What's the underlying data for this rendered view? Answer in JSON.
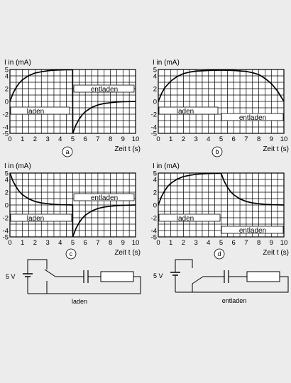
{
  "graphs": [
    {
      "id": "a",
      "ylabel": "I in (mA)",
      "xlabel": "Zeit t (s)",
      "yticks": [
        "5",
        "4",
        "2",
        "0",
        "-2",
        "-4",
        "-5"
      ],
      "xticks": [
        "0",
        "1",
        "2",
        "3",
        "4",
        "5",
        "6",
        "7",
        "8",
        "9",
        "10"
      ],
      "label_charge": "laden",
      "label_discharge": "entladen",
      "curve": [
        [
          0,
          0
        ],
        [
          0.25,
          1.3
        ],
        [
          0.5,
          2.2
        ],
        [
          0.75,
          2.9
        ],
        [
          1,
          3.4
        ],
        [
          1.5,
          4.05
        ],
        [
          2,
          4.45
        ],
        [
          2.5,
          4.65
        ],
        [
          3,
          4.8
        ],
        [
          3.5,
          4.88
        ],
        [
          4,
          4.93
        ],
        [
          4.5,
          4.95
        ],
        [
          4.99,
          4.96
        ],
        [
          5,
          -5
        ],
        [
          5.25,
          -3.7
        ],
        [
          5.5,
          -2.8
        ],
        [
          5.75,
          -2.1
        ],
        [
          6,
          -1.6
        ],
        [
          6.5,
          -0.95
        ],
        [
          7,
          -0.55
        ],
        [
          7.5,
          -0.32
        ],
        [
          8,
          -0.2
        ],
        [
          8.5,
          -0.1
        ],
        [
          9,
          -0.05
        ],
        [
          10,
          0
        ]
      ]
    },
    {
      "id": "b",
      "ylabel": "I in (mA)",
      "xlabel": "Zeit t (s)",
      "yticks": [
        "5",
        "4",
        "2",
        "0",
        "-2",
        "-4",
        "-5"
      ],
      "xticks": [
        "0",
        "1",
        "2",
        "3",
        "4",
        "5",
        "6",
        "7",
        "8",
        "9",
        "10"
      ],
      "label_charge": "laden",
      "label_discharge": "entladen",
      "curve": [
        [
          0,
          0
        ],
        [
          0.25,
          1.2
        ],
        [
          0.5,
          2.1
        ],
        [
          1,
          3.2
        ],
        [
          1.5,
          3.9
        ],
        [
          2,
          4.35
        ],
        [
          2.5,
          4.6
        ],
        [
          3,
          4.75
        ],
        [
          4,
          4.85
        ],
        [
          5,
          4.9
        ],
        [
          6,
          4.85
        ],
        [
          7,
          4.7
        ],
        [
          7.5,
          4.5
        ],
        [
          8,
          4.2
        ],
        [
          8.5,
          3.6
        ],
        [
          9,
          2.8
        ],
        [
          9.5,
          1.6
        ],
        [
          10,
          0
        ]
      ]
    },
    {
      "id": "c",
      "ylabel": "I in (mA)",
      "xlabel": "Zeit t (s)",
      "yticks": [
        "5",
        "4",
        "2",
        "0",
        "-2",
        "-4",
        "-5"
      ],
      "xticks": [
        "0",
        "1",
        "2",
        "3",
        "4",
        "5",
        "6",
        "7",
        "8",
        "9",
        "10"
      ],
      "label_charge": "laden",
      "label_discharge": "entladen",
      "curve": [
        [
          0,
          5
        ],
        [
          0.25,
          3.7
        ],
        [
          0.5,
          2.8
        ],
        [
          0.75,
          2.1
        ],
        [
          1,
          1.6
        ],
        [
          1.5,
          0.95
        ],
        [
          2,
          0.55
        ],
        [
          2.5,
          0.32
        ],
        [
          3,
          0.2
        ],
        [
          3.5,
          0.1
        ],
        [
          4,
          0.05
        ],
        [
          4.99,
          0
        ],
        [
          5,
          -5
        ],
        [
          5.25,
          -3.7
        ],
        [
          5.5,
          -2.8
        ],
        [
          5.75,
          -2.1
        ],
        [
          6,
          -1.6
        ],
        [
          6.5,
          -0.95
        ],
        [
          7,
          -0.55
        ],
        [
          7.5,
          -0.32
        ],
        [
          8,
          -0.2
        ],
        [
          8.5,
          -0.1
        ],
        [
          9,
          -0.05
        ],
        [
          10,
          0
        ]
      ]
    },
    {
      "id": "d",
      "ylabel": "I in (mA)",
      "xlabel": "Zeit t (s)",
      "yticks": [
        "5",
        "4",
        "2",
        "0",
        "-2",
        "-4",
        "-5"
      ],
      "xticks": [
        "0",
        "1",
        "2",
        "3",
        "4",
        "5",
        "6",
        "7",
        "8",
        "9",
        "10"
      ],
      "label_charge": "laden",
      "label_discharge": "entladen",
      "curve": [
        [
          0,
          0
        ],
        [
          0.25,
          1.3
        ],
        [
          0.5,
          2.2
        ],
        [
          0.75,
          2.9
        ],
        [
          1,
          3.4
        ],
        [
          1.5,
          4.05
        ],
        [
          2,
          4.45
        ],
        [
          2.5,
          4.65
        ],
        [
          3,
          4.8
        ],
        [
          3.5,
          4.88
        ],
        [
          4,
          4.93
        ],
        [
          4.5,
          4.95
        ],
        [
          5,
          4.96
        ],
        [
          5.25,
          3.7
        ],
        [
          5.5,
          2.8
        ],
        [
          5.75,
          2.1
        ],
        [
          6,
          1.6
        ],
        [
          6.5,
          0.95
        ],
        [
          7,
          0.55
        ],
        [
          7.5,
          0.32
        ],
        [
          8,
          0.2
        ],
        [
          8.5,
          0.1
        ],
        [
          9,
          0.05
        ],
        [
          10,
          0
        ]
      ]
    }
  ],
  "circuits": [
    {
      "id": "laden",
      "voltage": "5 V",
      "caption": "laden"
    },
    {
      "id": "entladen",
      "voltage": "5 V",
      "caption": "entladen"
    }
  ]
}
